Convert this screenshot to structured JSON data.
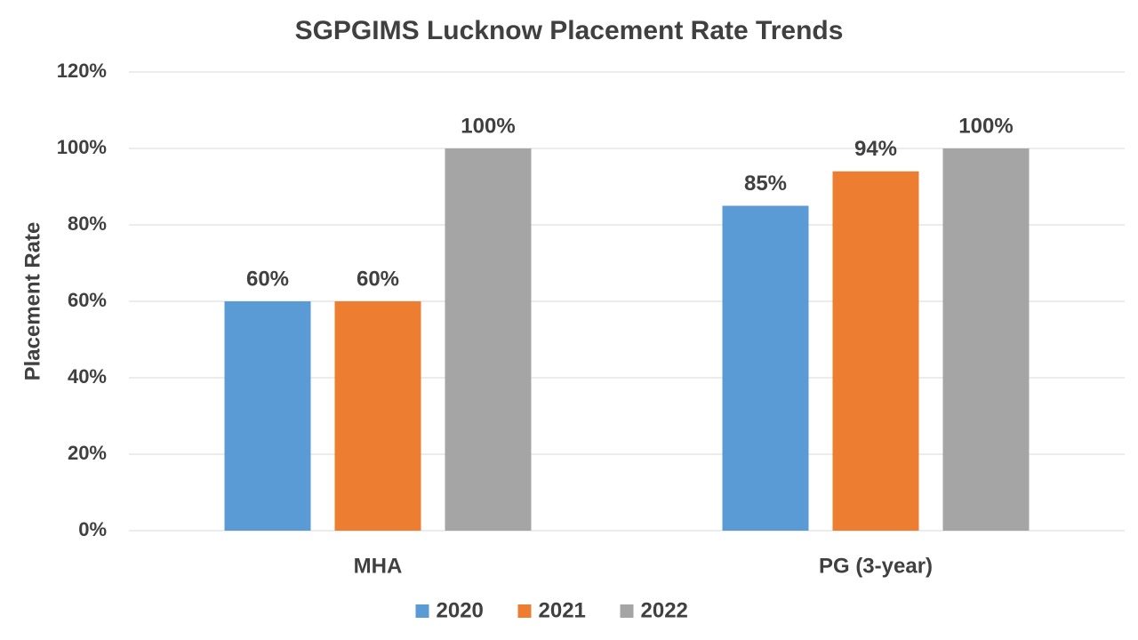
{
  "chart_data": {
    "type": "bar",
    "title": "SGPGIMS Lucknow Placement Rate Trends",
    "y_label": "Placement Rate",
    "categories": [
      "MHA",
      "PG (3-year)"
    ],
    "series": [
      {
        "name": "2020",
        "color": "#5b9bd5",
        "values": [
          60,
          85
        ],
        "value_labels": [
          "60%",
          "85%"
        ]
      },
      {
        "name": "2021",
        "color": "#ed7d31",
        "values": [
          60,
          94
        ],
        "value_labels": [
          "60%",
          "94%"
        ]
      },
      {
        "name": "2022",
        "color": "#a5a5a5",
        "values": [
          100,
          100
        ],
        "value_labels": [
          "100%",
          "100%"
        ]
      }
    ],
    "ylim": [
      0,
      120
    ],
    "yticks": [
      {
        "value": 0,
        "label": "0%"
      },
      {
        "value": 20,
        "label": "20%"
      },
      {
        "value": 40,
        "label": "40%"
      },
      {
        "value": 60,
        "label": "60%"
      },
      {
        "value": 80,
        "label": "80%"
      },
      {
        "value": 100,
        "label": "100%"
      },
      {
        "value": 120,
        "label": "120%"
      }
    ],
    "grid": true,
    "legend": "bottom"
  }
}
